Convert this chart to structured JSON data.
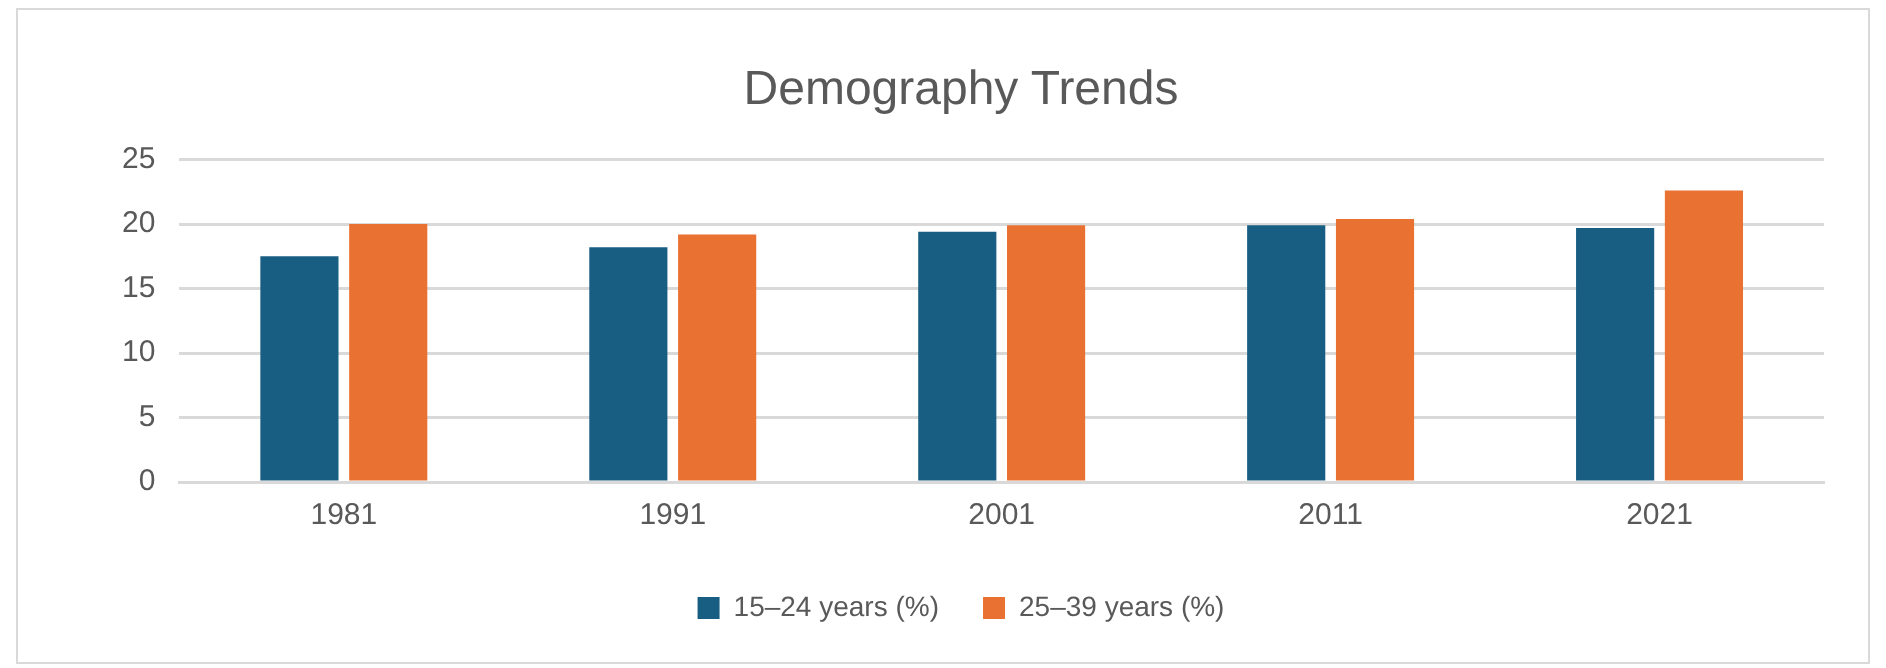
{
  "chart_data": {
    "type": "bar",
    "title": "Demography Trends",
    "categories": [
      "1981",
      "1991",
      "2001",
      "2011",
      "2021"
    ],
    "series": [
      {
        "name": "15–24 years (%)",
        "color": "#185e82",
        "values": [
          17.5,
          18.2,
          19.4,
          19.9,
          19.7
        ]
      },
      {
        "name": "25–39 years (%)",
        "color": "#e97132",
        "values": [
          20.0,
          19.2,
          19.9,
          20.4,
          22.6
        ]
      }
    ],
    "ylim": [
      0,
      25
    ],
    "yticks": [
      0,
      5,
      10,
      15,
      20,
      25
    ],
    "grid": "y",
    "legend": "bottom"
  }
}
